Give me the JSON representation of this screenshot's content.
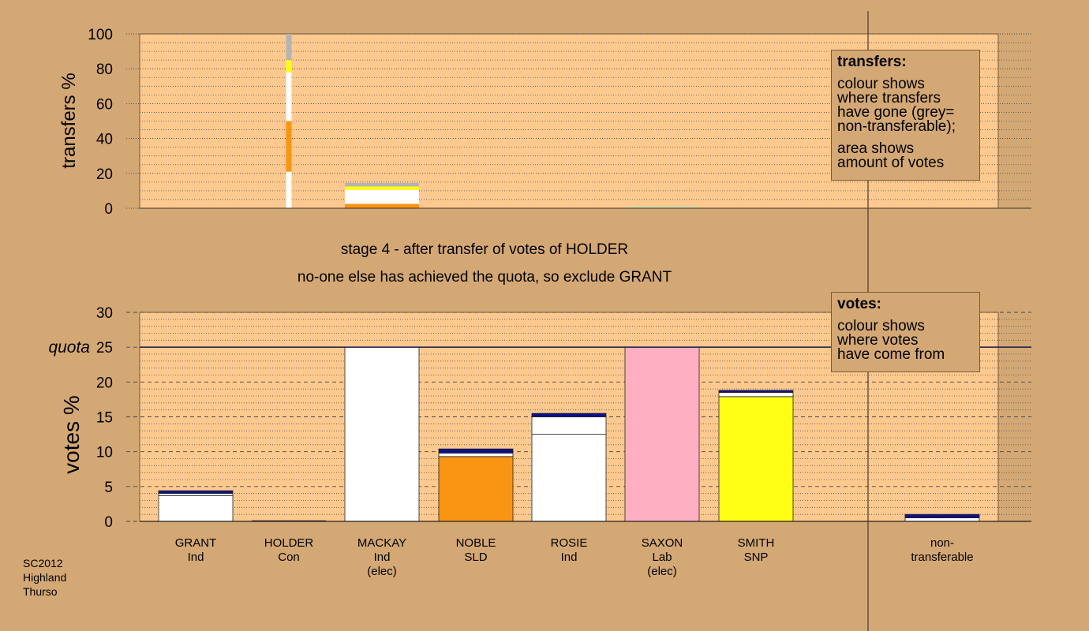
{
  "colors": {
    "background": "#d4a875",
    "plot_bg": "#fec98e",
    "white": "#ffffff",
    "orange": "#fa9512",
    "yellow": "#ffff16",
    "pink": "#feb0c2",
    "navy": "#0f0f89",
    "grey": "#b4b4b4",
    "light_green": "#c2e0b2"
  },
  "stage": {
    "line1": "stage 4 - after transfer of votes of HOLDER",
    "line2": "no-one else has achieved the quota, so exclude GRANT"
  },
  "legend_transfers": {
    "title": "transfers:",
    "lines1": [
      "colour shows",
      "where transfers",
      "have gone (grey=",
      "non-transferable);"
    ],
    "lines2": [
      "area shows",
      "amount of votes"
    ]
  },
  "legend_votes": {
    "title": "votes:",
    "lines": [
      "colour shows",
      "where votes",
      "have come from"
    ]
  },
  "footnote": [
    "SC2012",
    "Highland",
    "Thurso"
  ],
  "chart_data": [
    {
      "type": "bar",
      "ylabel": "transfers %",
      "ylim": [
        0,
        100
      ],
      "yticks": [
        0,
        20,
        40,
        60,
        80,
        100
      ],
      "grid": true,
      "categories": [
        "GRANT",
        "HOLDER",
        "MACKAY",
        "NOBLE",
        "ROSIE",
        "SAXON",
        "SMITH",
        "non-transferable"
      ],
      "thin_bar": {
        "category": "HOLDER",
        "segments": [
          {
            "to": "NOBLE",
            "color": "white",
            "from_pct": 0,
            "to_pct": 21
          },
          {
            "to": "NOBLE",
            "color": "orange",
            "from_pct": 21,
            "to_pct": 50
          },
          {
            "to": "ROSIE",
            "color": "white",
            "from_pct": 50,
            "to_pct": 78
          },
          {
            "to": "SMITH",
            "color": "yellow",
            "from_pct": 78,
            "to_pct": 85
          },
          {
            "to": "non-transferable",
            "color": "grey",
            "from_pct": 85,
            "to_pct": 100
          }
        ]
      },
      "wide_bar": {
        "category": "MACKAY",
        "segments": [
          {
            "color": "orange",
            "from_pct": 0,
            "to_pct": 2.5
          },
          {
            "color": "white",
            "from_pct": 2.5,
            "to_pct": 10.5
          },
          {
            "color": "yellow",
            "from_pct": 10.5,
            "to_pct": 12.5
          },
          {
            "color": "grey",
            "from_pct": 12.5,
            "to_pct": 14.5
          }
        ]
      },
      "saxon_sliver": {
        "category": "SAXON",
        "color": "light_green",
        "from_pct": 0,
        "to_pct": 0.8
      }
    },
    {
      "type": "bar",
      "ylabel": "votes %",
      "ylim": [
        0,
        30
      ],
      "yticks": [
        0,
        5,
        10,
        15,
        20,
        25,
        30
      ],
      "grid": true,
      "quota": 25,
      "quota_label": "quota",
      "candidates": [
        {
          "name": "GRANT",
          "party": "Ind",
          "note": "",
          "segments": [
            {
              "color": "white",
              "from": 0,
              "to": 3.7
            },
            {
              "color": "white",
              "from": 3.7,
              "to": 4.0
            },
            {
              "color": "navy",
              "from": 4.0,
              "to": 4.4
            }
          ]
        },
        {
          "name": "HOLDER",
          "party": "Con",
          "note": "",
          "segments": []
        },
        {
          "name": "MACKAY",
          "party": "Ind",
          "note": "(elec)",
          "segments": [
            {
              "color": "white",
              "from": 0,
              "to": 25.0
            }
          ]
        },
        {
          "name": "NOBLE",
          "party": "SLD",
          "note": "",
          "segments": [
            {
              "color": "orange",
              "from": 0,
              "to": 9.3
            },
            {
              "color": "white",
              "from": 9.3,
              "to": 9.8
            },
            {
              "color": "navy",
              "from": 9.8,
              "to": 10.4
            }
          ]
        },
        {
          "name": "ROSIE",
          "party": "Ind",
          "note": "",
          "segments": [
            {
              "color": "white",
              "from": 0,
              "to": 12.5
            },
            {
              "color": "white",
              "from": 12.5,
              "to": 15.0
            },
            {
              "color": "navy",
              "from": 15.0,
              "to": 15.5
            }
          ]
        },
        {
          "name": "SAXON",
          "party": "Lab",
          "note": "(elec)",
          "segments": [
            {
              "color": "pink",
              "from": 0,
              "to": 25.0
            }
          ]
        },
        {
          "name": "SMITH",
          "party": "SNP",
          "note": "",
          "segments": [
            {
              "color": "yellow",
              "from": 0,
              "to": 17.9
            },
            {
              "color": "white",
              "from": 17.9,
              "to": 18.5
            },
            {
              "color": "navy",
              "from": 18.5,
              "to": 18.8
            }
          ]
        },
        {
          "name": "non-",
          "party": "transferable",
          "note": "",
          "segments": [
            {
              "color": "white",
              "from": 0,
              "to": 0.5
            },
            {
              "color": "navy",
              "from": 0.5,
              "to": 1.0
            }
          ]
        }
      ]
    }
  ]
}
